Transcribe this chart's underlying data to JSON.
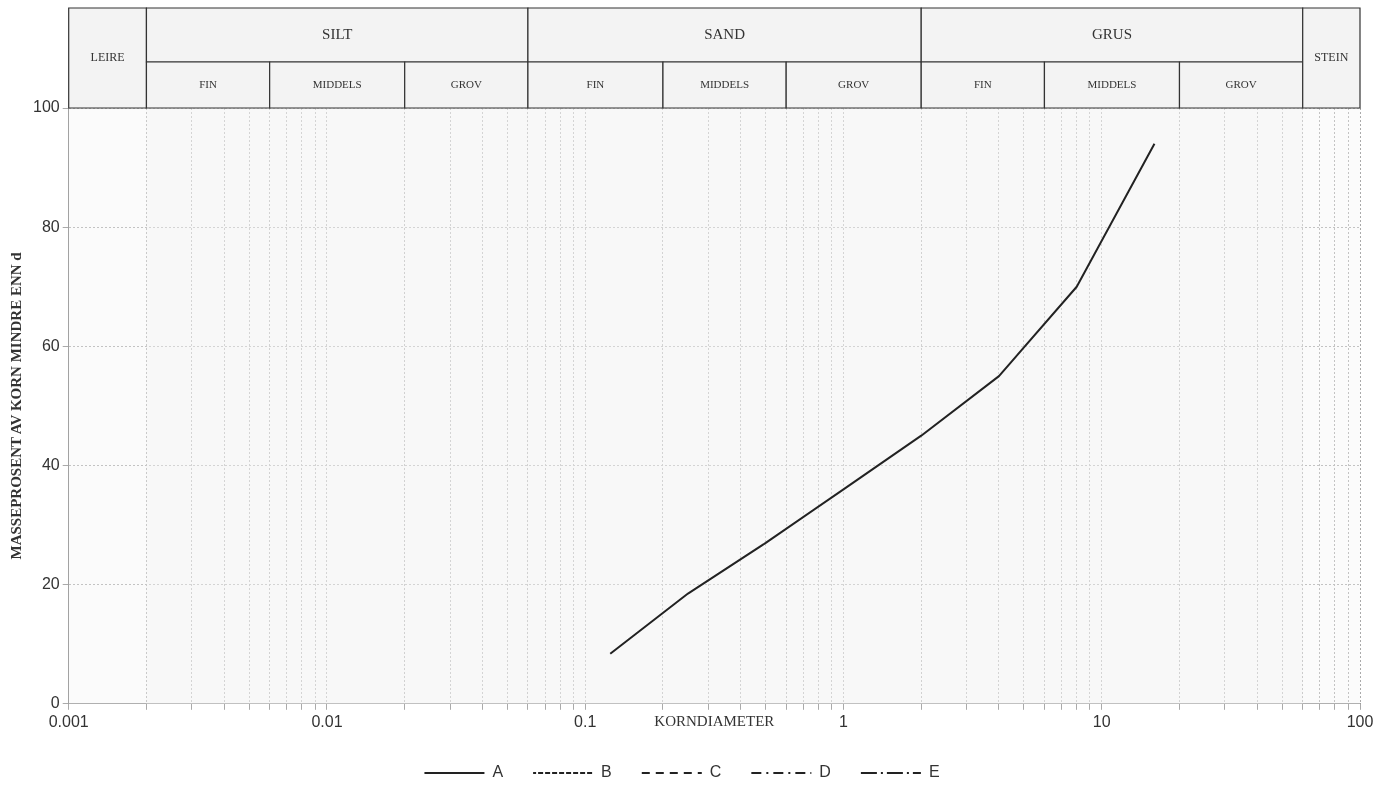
{
  "chart_data": {
    "type": "line",
    "xlabel": "KORNDIAMETER",
    "ylabel": "MASSEPROSENT AV KORN MINDRE ENN d",
    "log": "x",
    "grid": true,
    "legend": "bottom",
    "marker": "none",
    "xlim": [
      0.001,
      100
    ],
    "ylim": [
      0,
      100
    ],
    "xticks": [
      0.001,
      {
        "value": 0.002,
        "label": null
      },
      {
        "value": 0.003,
        "label": null
      },
      {
        "value": 0.004,
        "label": null
      },
      {
        "value": 0.005,
        "label": null
      },
      {
        "value": 0.006,
        "label": null
      },
      {
        "value": 0.007,
        "label": null
      },
      {
        "value": 0.008,
        "label": null
      },
      {
        "value": 0.009,
        "label": null
      },
      0.01,
      {
        "value": 0.02,
        "label": null
      },
      {
        "value": 0.03,
        "label": null
      },
      {
        "value": 0.04,
        "label": null
      },
      {
        "value": 0.05,
        "label": null
      },
      {
        "value": 0.06,
        "label": null
      },
      {
        "value": 0.07,
        "label": null
      },
      {
        "value": 0.08,
        "label": null
      },
      {
        "value": 0.09,
        "label": null
      },
      0.1,
      {
        "value": 0.2,
        "label": null
      },
      {
        "value": 0.3,
        "label": null
      },
      {
        "value": 0.4,
        "label": null
      },
      {
        "value": 0.5,
        "label": null
      },
      {
        "value": 0.6,
        "label": null
      },
      {
        "value": 0.7,
        "label": null
      },
      {
        "value": 0.8,
        "label": null
      },
      {
        "value": 0.9,
        "label": null
      },
      1,
      {
        "value": 2,
        "label": null
      },
      {
        "value": 3,
        "label": null
      },
      {
        "value": 4,
        "label": null
      },
      {
        "value": 5,
        "label": null
      },
      {
        "value": 6,
        "label": null
      },
      {
        "value": 7,
        "label": null
      },
      {
        "value": 8,
        "label": null
      },
      {
        "value": 9,
        "label": null
      },
      10,
      {
        "value": 20,
        "label": null
      },
      {
        "value": 30,
        "label": null
      },
      {
        "value": 40,
        "label": null
      },
      {
        "value": 50,
        "label": null
      },
      {
        "value": 60,
        "label": null
      },
      {
        "value": 70,
        "label": null
      },
      {
        "value": 80,
        "label": null
      },
      {
        "value": 90,
        "label": null
      },
      100
    ],
    "yticks": [
      0,
      20,
      40,
      60,
      80,
      100
    ],
    "series": [
      {
        "name": "A",
        "color": "#222222",
        "line_style": "solid",
        "x": [
          0.125,
          0.25,
          0.5,
          1,
          2,
          4,
          8,
          16
        ],
        "values": [
          8.4,
          18.5,
          27,
          36,
          45,
          55,
          70,
          94
        ]
      },
      {
        "name": "B",
        "color": "#222222",
        "line_style": "dotted"
      },
      {
        "name": "C",
        "color": "#222222",
        "line_style": "dashed"
      },
      {
        "name": "D",
        "color": "#222222",
        "line_style": "dashdot"
      },
      {
        "name": "E",
        "color": "#222222",
        "line_style": "dashdotdot"
      }
    ],
    "bands": [
      {
        "axis": "x",
        "from": 0.001,
        "to": 0.002,
        "label": "LEIRE",
        "color": "#f3f3f3"
      },
      {
        "axis": "x",
        "from": 0.002,
        "to": 0.06,
        "label": "SILT",
        "color": "#f3f3f3"
      },
      {
        "axis": "x",
        "from": 0.002,
        "to": 0.006,
        "label": "FIN",
        "color": "#f3f3f3"
      },
      {
        "axis": "x",
        "from": 0.006,
        "to": 0.02,
        "label": "MIDDELS",
        "color": "#f3f3f3"
      },
      {
        "axis": "x",
        "from": 0.02,
        "to": 0.06,
        "label": "GROV",
        "color": "#f3f3f3"
      },
      {
        "axis": "x",
        "from": 0.06,
        "to": 2,
        "label": "SAND",
        "color": "#f3f3f3"
      },
      {
        "axis": "x",
        "from": 0.06,
        "to": 0.2,
        "label": "FIN",
        "color": "#f3f3f3"
      },
      {
        "axis": "x",
        "from": 0.2,
        "to": 0.6,
        "label": "MIDDELS",
        "color": "#f3f3f3"
      },
      {
        "axis": "x",
        "from": 0.6,
        "to": 2,
        "label": "GROV",
        "color": "#f3f3f3"
      },
      {
        "axis": "x",
        "from": 2,
        "to": 60,
        "label": "GRUS",
        "color": "#f3f3f3"
      },
      {
        "axis": "x",
        "from": 2,
        "to": 6,
        "label": "FIN",
        "color": "#f3f3f3"
      },
      {
        "axis": "x",
        "from": 6,
        "to": 20,
        "label": "MIDDELS",
        "color": "#f3f3f3"
      },
      {
        "axis": "x",
        "from": 20,
        "to": 60,
        "label": "GROV",
        "color": "#f3f3f3"
      },
      {
        "axis": "x",
        "from": 60,
        "to": 100,
        "label": "STEIN",
        "color": "#f3f3f3"
      }
    ]
  }
}
